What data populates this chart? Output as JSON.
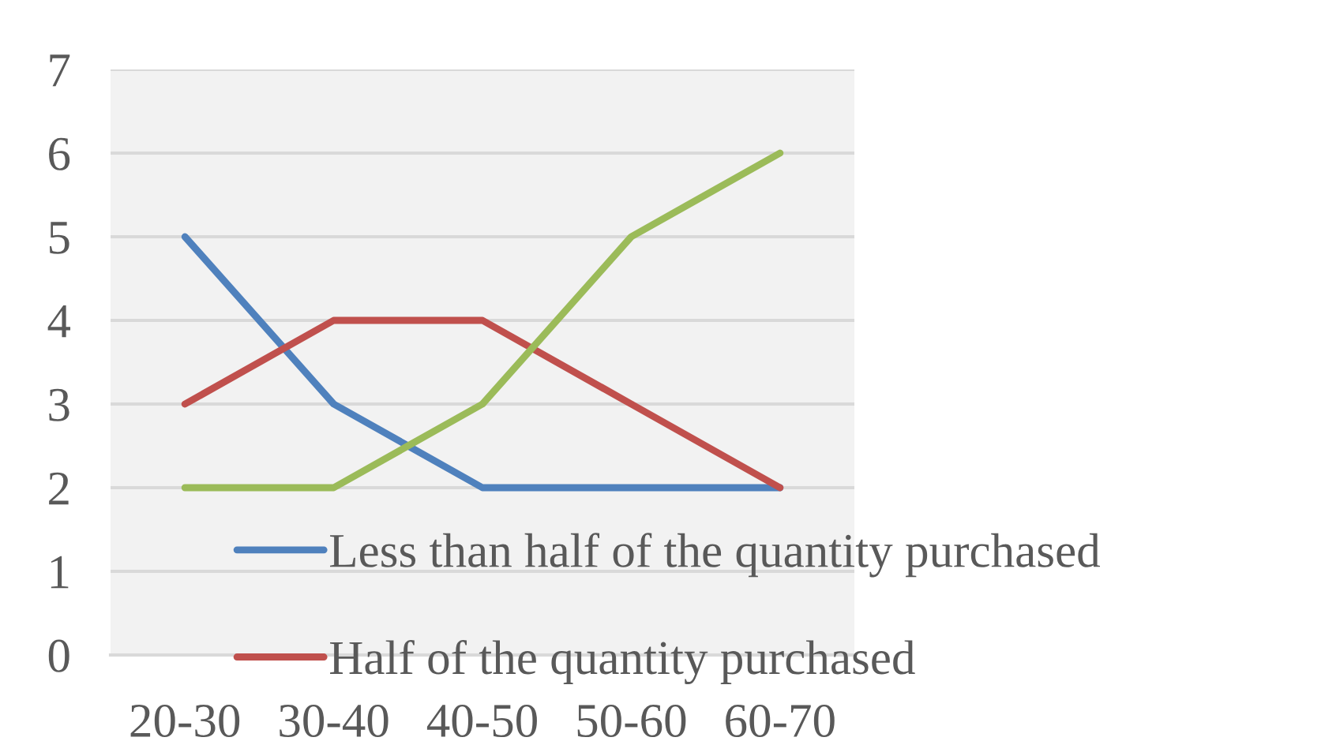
{
  "chart_data": {
    "type": "line",
    "categories": [
      "20-30",
      "30-40",
      "40-50",
      "50-60",
      "60-70"
    ],
    "series": [
      {
        "name": "Less than half of the quantity purchased",
        "color": "#4f81bd",
        "values": [
          5,
          3,
          2,
          2,
          2
        ]
      },
      {
        "name": "Half of the quantity purchased",
        "color": "#c0504d",
        "values": [
          3,
          4,
          4,
          3,
          2
        ]
      },
      {
        "color": "#9bbb59",
        "values": [
          2,
          2,
          3,
          5,
          6
        ]
      }
    ],
    "ylim": [
      0,
      7
    ],
    "yticks": [
      0,
      1,
      2,
      3,
      4,
      5,
      6,
      7
    ],
    "grid": "y",
    "legend": "bottom",
    "line_style": "solid"
  }
}
